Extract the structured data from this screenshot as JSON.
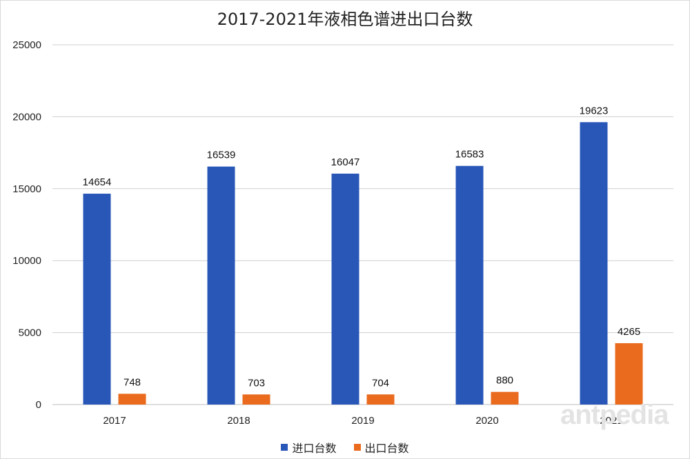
{
  "chart_data": {
    "type": "bar",
    "title": "2017-2021年液相色谱进出口台数",
    "categories": [
      "2017",
      "2018",
      "2019",
      "2020",
      "2021"
    ],
    "series": [
      {
        "name": "进口台数",
        "values": [
          14654,
          16539,
          16047,
          16583,
          19623
        ],
        "color": "#2857b8"
      },
      {
        "name": "出口台数",
        "values": [
          748,
          703,
          704,
          880,
          4265
        ],
        "color": "#ea6a1e"
      }
    ],
    "ylim": [
      0,
      25000
    ],
    "yticks": [
      0,
      5000,
      10000,
      15000,
      20000,
      25000
    ],
    "grid": true,
    "legend_position": "bottom"
  },
  "watermark": "antpedia"
}
